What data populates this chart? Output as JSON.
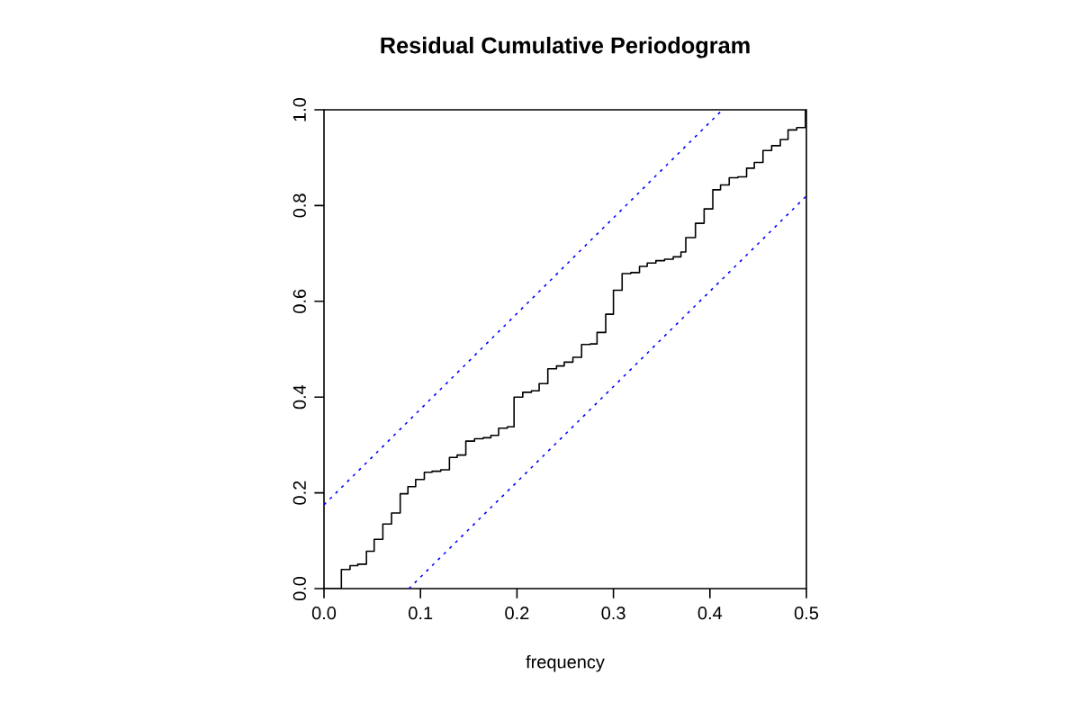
{
  "chart_data": {
    "type": "step",
    "title": "Residual Cumulative Periodogram",
    "xlabel": "frequency",
    "xlim": [
      0,
      0.5
    ],
    "ylim": [
      0,
      1
    ],
    "xticks": [
      {
        "value": 0,
        "label": "0.0"
      },
      0.1,
      0.2,
      0.3,
      0.4,
      0.5
    ],
    "yticks": [
      {
        "value": 0,
        "label": "0.0"
      },
      0.2,
      0.4,
      0.6,
      0.8,
      {
        "value": 1,
        "label": "1.0"
      }
    ],
    "grid": false,
    "series": [
      {
        "color": "#000000",
        "line_style": "solid",
        "x": [
          0,
          0.018,
          0.027,
          0.035,
          0.044,
          0.052,
          0.061,
          0.07,
          0.079,
          0.087,
          0.095,
          0.104,
          0.112,
          0.121,
          0.13,
          0.138,
          0.147,
          0.156,
          0.165,
          0.173,
          0.181,
          0.19,
          0.197,
          0.206,
          0.215,
          0.223,
          0.232,
          0.241,
          0.249,
          0.258,
          0.267,
          0.276,
          0.283,
          0.292,
          0.3,
          0.309,
          0.318,
          0.327,
          0.335,
          0.344,
          0.353,
          0.362,
          0.37,
          0.375,
          0.385,
          0.394,
          0.403,
          0.411,
          0.42,
          0.429,
          0.438,
          0.446,
          0.455,
          0.464,
          0.473,
          0.481,
          0.49,
          0.499,
          0.5
        ],
        "values": [
          0,
          0.04,
          0.048,
          0.051,
          0.078,
          0.103,
          0.135,
          0.158,
          0.198,
          0.213,
          0.228,
          0.243,
          0.245,
          0.248,
          0.274,
          0.279,
          0.308,
          0.313,
          0.315,
          0.32,
          0.335,
          0.338,
          0.4,
          0.41,
          0.413,
          0.428,
          0.459,
          0.465,
          0.473,
          0.483,
          0.51,
          0.511,
          0.535,
          0.573,
          0.623,
          0.658,
          0.66,
          0.673,
          0.68,
          0.685,
          0.688,
          0.693,
          0.703,
          0.733,
          0.763,
          0.793,
          0.833,
          0.843,
          0.858,
          0.86,
          0.878,
          0.89,
          0.915,
          0.925,
          0.938,
          0.958,
          0.963,
          1.0,
          1.0
        ]
      },
      {
        "type": "line",
        "color": "#0000ff",
        "line_style": "dotted",
        "x": [
          0,
          0.413
        ],
        "values": [
          0.175,
          1.0
        ]
      },
      {
        "type": "line",
        "color": "#0000ff",
        "line_style": "dotted",
        "x": [
          0.088,
          0.5
        ],
        "values": [
          0,
          0.82
        ]
      }
    ]
  }
}
